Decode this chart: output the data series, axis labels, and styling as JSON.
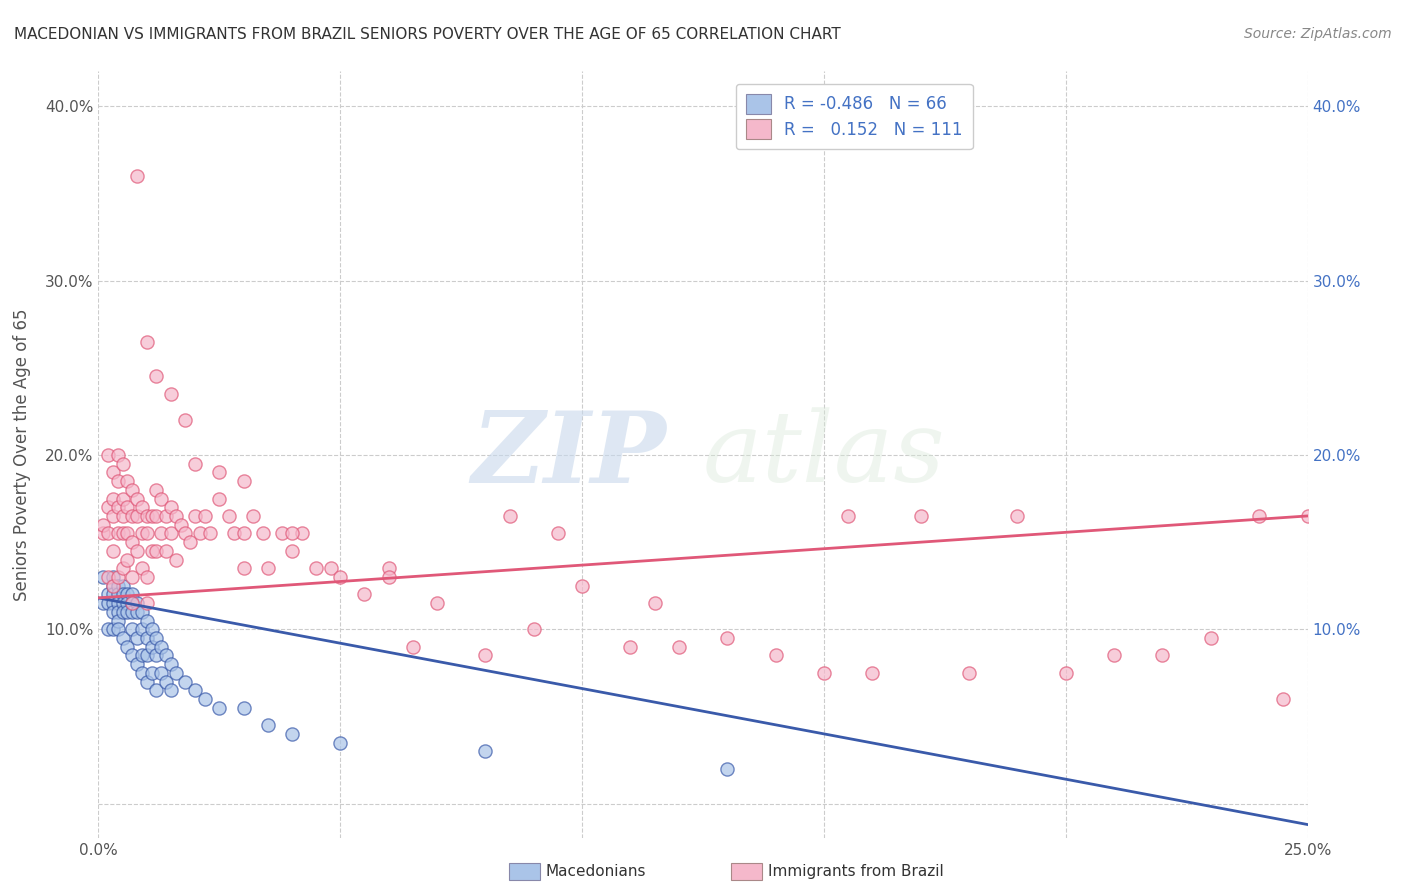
{
  "title": "MACEDONIAN VS IMMIGRANTS FROM BRAZIL SENIORS POVERTY OVER THE AGE OF 65 CORRELATION CHART",
  "source": "Source: ZipAtlas.com",
  "ylabel": "Seniors Poverty Over the Age of 65",
  "xlabel": "",
  "xlim": [
    0.0,
    0.25
  ],
  "ylim": [
    -0.02,
    0.42
  ],
  "yticks": [
    0.0,
    0.1,
    0.2,
    0.3,
    0.4
  ],
  "xticks": [
    0.0,
    0.05,
    0.1,
    0.15,
    0.2,
    0.25
  ],
  "xtick_labels": [
    "0.0%",
    "",
    "",
    "",
    "",
    "25.0%"
  ],
  "ytick_labels_left": [
    "",
    "10.0%",
    "20.0%",
    "30.0%",
    "40.0%"
  ],
  "ytick_labels_right": [
    "",
    "10.0%",
    "20.0%",
    "30.0%",
    "40.0%"
  ],
  "macedonian_color": "#aac4e8",
  "brazil_color": "#f5b8cb",
  "macedonian_line_color": "#3a5aaa",
  "brazil_line_color": "#e05878",
  "legend_label_mac": "Macedonians",
  "legend_label_bra": "Immigrants from Brazil",
  "r_mac": -0.486,
  "n_mac": 66,
  "r_bra": 0.152,
  "n_bra": 111,
  "background_color": "#ffffff",
  "grid_color": "#cccccc",
  "watermark_zip": "ZIP",
  "watermark_atlas": "atlas",
  "macedonian_x": [
    0.001,
    0.001,
    0.002,
    0.002,
    0.002,
    0.003,
    0.003,
    0.003,
    0.003,
    0.003,
    0.003,
    0.004,
    0.004,
    0.004,
    0.004,
    0.004,
    0.004,
    0.005,
    0.005,
    0.005,
    0.005,
    0.005,
    0.006,
    0.006,
    0.006,
    0.006,
    0.007,
    0.007,
    0.007,
    0.007,
    0.007,
    0.008,
    0.008,
    0.008,
    0.008,
    0.009,
    0.009,
    0.009,
    0.009,
    0.01,
    0.01,
    0.01,
    0.01,
    0.011,
    0.011,
    0.011,
    0.012,
    0.012,
    0.012,
    0.013,
    0.013,
    0.014,
    0.014,
    0.015,
    0.015,
    0.016,
    0.018,
    0.02,
    0.022,
    0.025,
    0.03,
    0.035,
    0.04,
    0.05,
    0.08,
    0.13
  ],
  "macedonian_y": [
    0.115,
    0.13,
    0.12,
    0.115,
    0.1,
    0.13,
    0.125,
    0.12,
    0.115,
    0.11,
    0.1,
    0.125,
    0.12,
    0.115,
    0.11,
    0.105,
    0.1,
    0.125,
    0.12,
    0.115,
    0.11,
    0.095,
    0.12,
    0.115,
    0.11,
    0.09,
    0.12,
    0.115,
    0.11,
    0.1,
    0.085,
    0.115,
    0.11,
    0.095,
    0.08,
    0.11,
    0.1,
    0.085,
    0.075,
    0.105,
    0.095,
    0.085,
    0.07,
    0.1,
    0.09,
    0.075,
    0.095,
    0.085,
    0.065,
    0.09,
    0.075,
    0.085,
    0.07,
    0.08,
    0.065,
    0.075,
    0.07,
    0.065,
    0.06,
    0.055,
    0.055,
    0.045,
    0.04,
    0.035,
    0.03,
    0.02
  ],
  "brazil_x": [
    0.001,
    0.001,
    0.002,
    0.002,
    0.002,
    0.002,
    0.003,
    0.003,
    0.003,
    0.003,
    0.003,
    0.004,
    0.004,
    0.004,
    0.004,
    0.004,
    0.005,
    0.005,
    0.005,
    0.005,
    0.005,
    0.006,
    0.006,
    0.006,
    0.006,
    0.007,
    0.007,
    0.007,
    0.007,
    0.007,
    0.008,
    0.008,
    0.008,
    0.009,
    0.009,
    0.009,
    0.01,
    0.01,
    0.01,
    0.01,
    0.011,
    0.011,
    0.012,
    0.012,
    0.012,
    0.013,
    0.013,
    0.014,
    0.014,
    0.015,
    0.015,
    0.016,
    0.016,
    0.017,
    0.018,
    0.019,
    0.02,
    0.021,
    0.022,
    0.023,
    0.025,
    0.027,
    0.028,
    0.03,
    0.03,
    0.032,
    0.034,
    0.035,
    0.038,
    0.04,
    0.042,
    0.045,
    0.048,
    0.05,
    0.055,
    0.06,
    0.065,
    0.07,
    0.08,
    0.085,
    0.09,
    0.095,
    0.1,
    0.11,
    0.115,
    0.12,
    0.13,
    0.14,
    0.15,
    0.155,
    0.16,
    0.17,
    0.18,
    0.19,
    0.2,
    0.21,
    0.22,
    0.23,
    0.24,
    0.245,
    0.25,
    0.008,
    0.01,
    0.012,
    0.015,
    0.018,
    0.02,
    0.025,
    0.03,
    0.04,
    0.06
  ],
  "brazil_y": [
    0.155,
    0.16,
    0.17,
    0.2,
    0.155,
    0.13,
    0.19,
    0.175,
    0.165,
    0.145,
    0.125,
    0.2,
    0.185,
    0.17,
    0.155,
    0.13,
    0.195,
    0.175,
    0.165,
    0.155,
    0.135,
    0.185,
    0.17,
    0.155,
    0.14,
    0.18,
    0.165,
    0.15,
    0.13,
    0.115,
    0.175,
    0.165,
    0.145,
    0.17,
    0.155,
    0.135,
    0.165,
    0.155,
    0.13,
    0.115,
    0.165,
    0.145,
    0.18,
    0.165,
    0.145,
    0.175,
    0.155,
    0.165,
    0.145,
    0.17,
    0.155,
    0.165,
    0.14,
    0.16,
    0.155,
    0.15,
    0.165,
    0.155,
    0.165,
    0.155,
    0.175,
    0.165,
    0.155,
    0.155,
    0.135,
    0.165,
    0.155,
    0.135,
    0.155,
    0.145,
    0.155,
    0.135,
    0.135,
    0.13,
    0.12,
    0.135,
    0.09,
    0.115,
    0.085,
    0.165,
    0.1,
    0.155,
    0.125,
    0.09,
    0.115,
    0.09,
    0.095,
    0.085,
    0.075,
    0.165,
    0.075,
    0.165,
    0.075,
    0.165,
    0.075,
    0.085,
    0.085,
    0.095,
    0.165,
    0.06,
    0.165,
    0.36,
    0.265,
    0.245,
    0.235,
    0.22,
    0.195,
    0.19,
    0.185,
    0.155,
    0.13
  ]
}
